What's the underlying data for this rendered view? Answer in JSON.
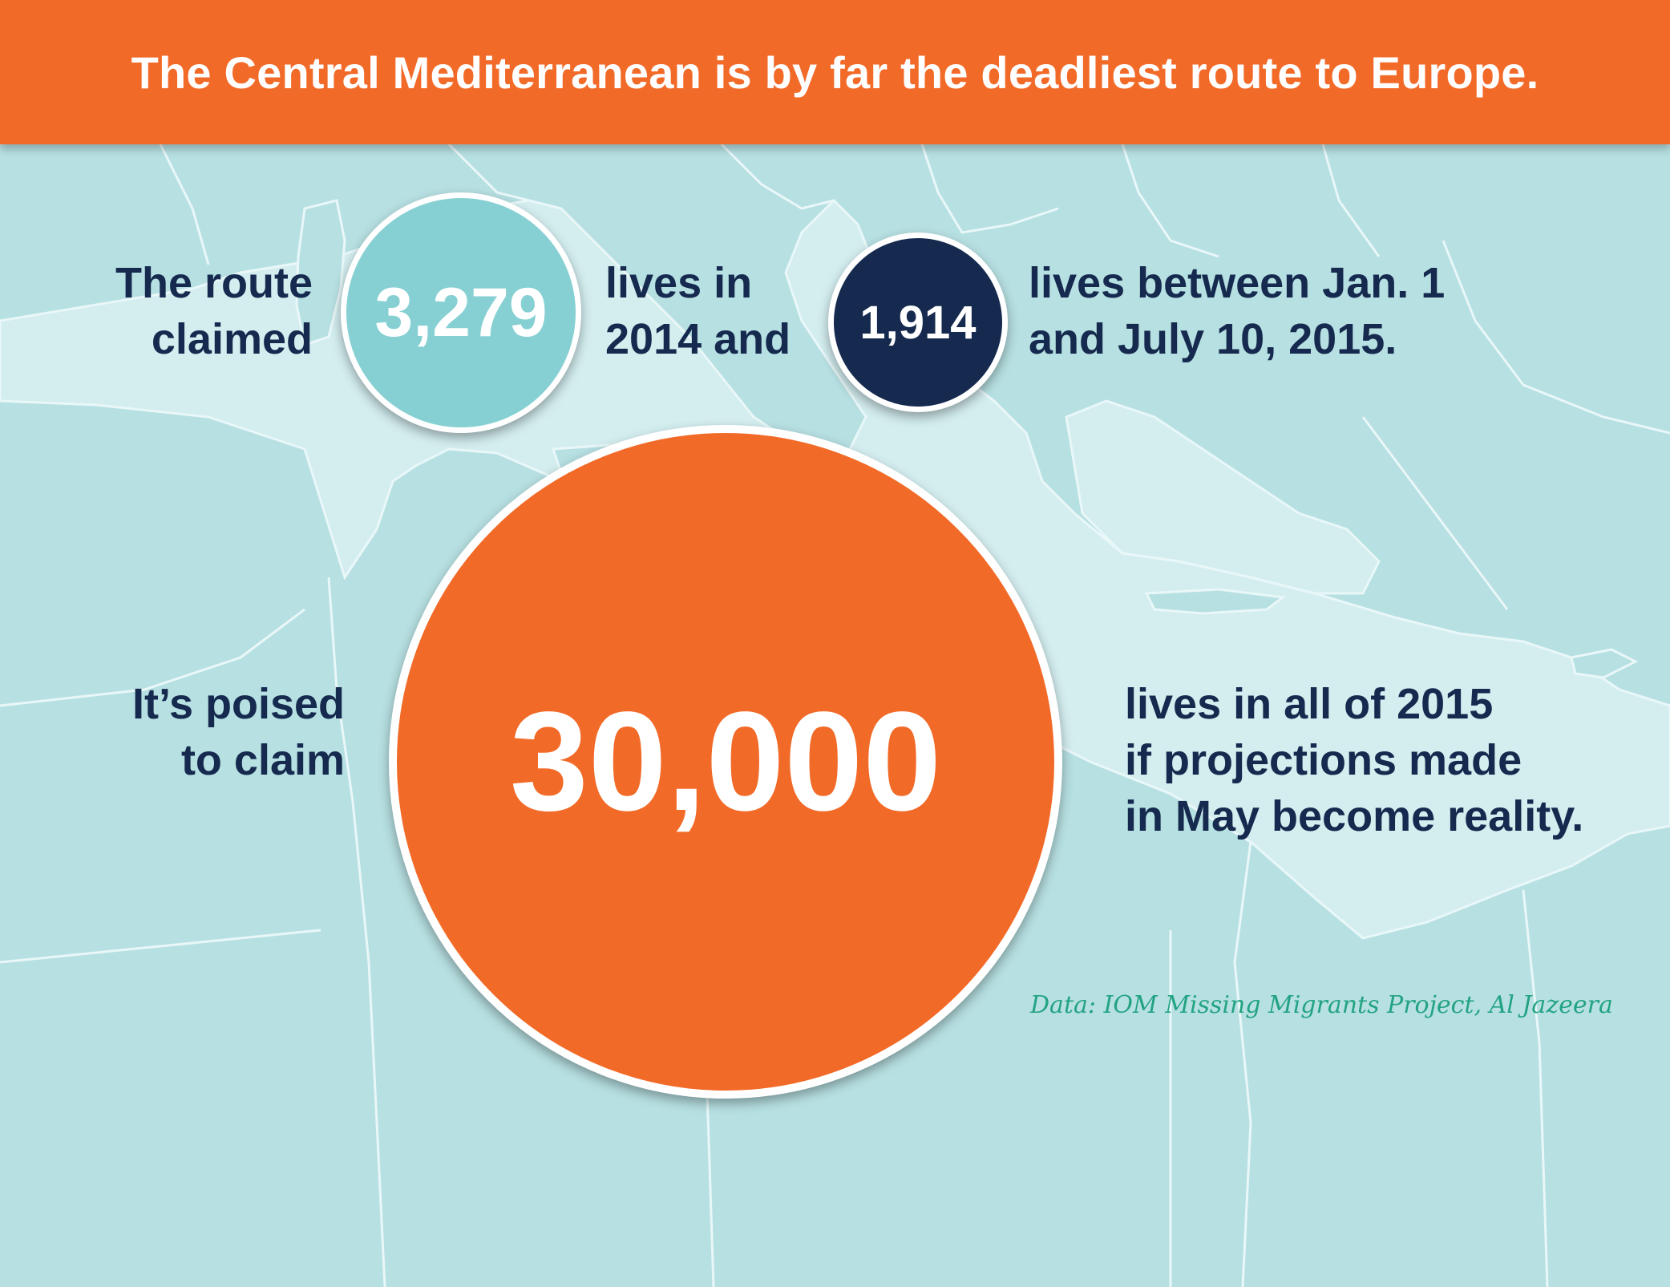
{
  "title": "The Central Mediterranean is by far the deadliest route to Europe.",
  "colors": {
    "banner": "#f26a28",
    "sea": "#d4eef0",
    "land": "#b7e0e2",
    "text_dark": "#152a4e",
    "circle_2014": "#86d0d3",
    "circle_2015_partial": "#152a4e",
    "circle_projection": "#f26a28",
    "source_text": "#23a383"
  },
  "statements": {
    "intro": [
      "The route",
      "claimed"
    ],
    "value_2014": "3,279",
    "mid": [
      "lives in",
      "2014 and"
    ],
    "value_2015_partial": "1,914",
    "tail": [
      "lives between Jan. 1",
      "and July 10, 2015."
    ],
    "projection_intro": [
      "It’s poised",
      "to claim"
    ],
    "value_projection": "30,000",
    "projection_tail": [
      "lives in all of 2015",
      "if projections made",
      "in May become reality."
    ]
  },
  "source": "Data: IOM Missing Migrants Project, Al Jazeera"
}
